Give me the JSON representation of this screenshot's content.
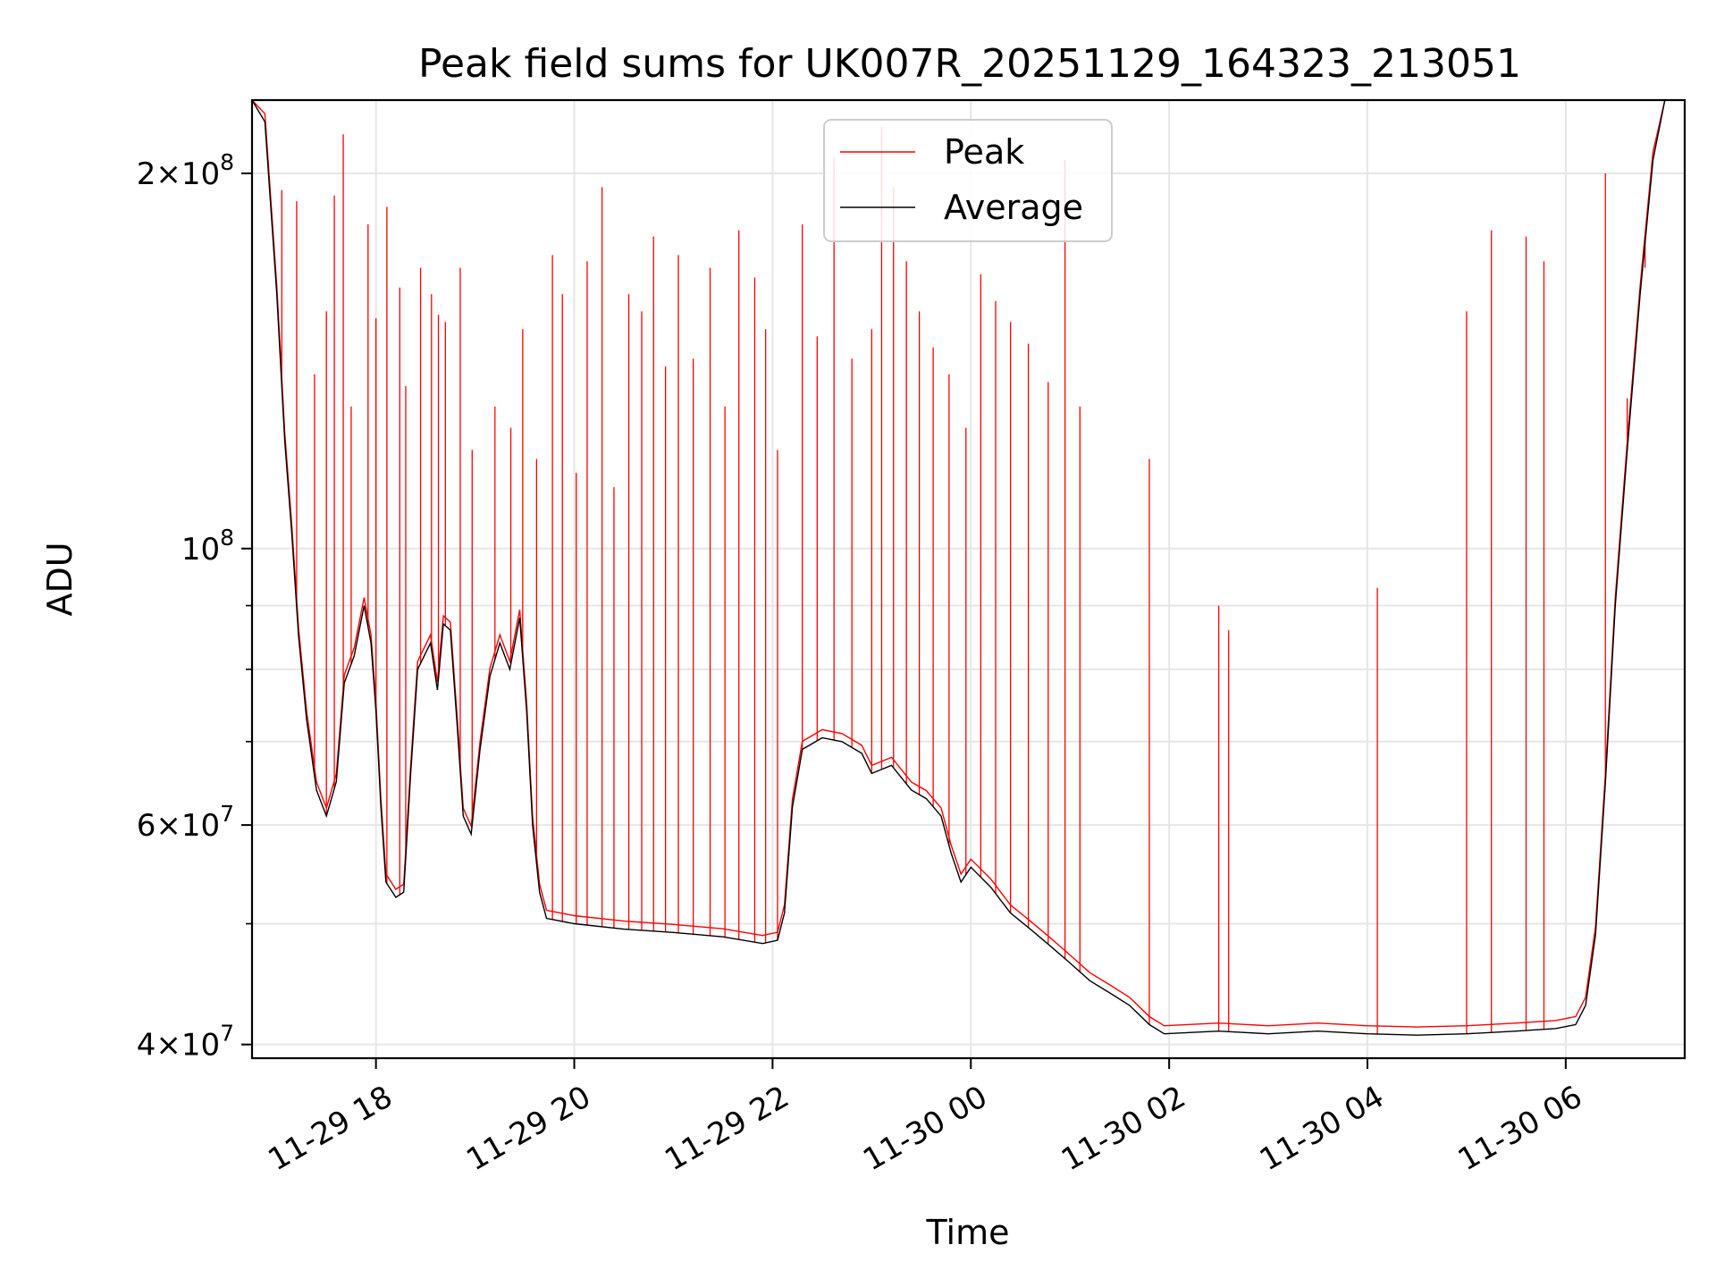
{
  "chart_data": {
    "type": "line",
    "title": "Peak field sums for UK007R_20251129_164323_213051",
    "xlabel": "Time",
    "ylabel": "ADU",
    "yscale": "log",
    "xlim_hours": [
      16.75,
      7.2
    ],
    "xlim_hours_note": "hours relative to 2025-11-29 00:00; 7.2 means 2025-11-30 07:12",
    "ylim": [
      39000000,
      229000000
    ],
    "grid": true,
    "legend_position": "upper center",
    "x_ticks": [
      {
        "hour": 18,
        "label": "11-29 18"
      },
      {
        "hour": 20,
        "label": "11-29 20"
      },
      {
        "hour": 22,
        "label": "11-29 22"
      },
      {
        "hour": 24,
        "label": "11-30 00"
      },
      {
        "hour": 26,
        "label": "11-30 02"
      },
      {
        "hour": 28,
        "label": "11-30 04"
      },
      {
        "hour": 30,
        "label": "11-30 06"
      }
    ],
    "y_major_ticks": [
      {
        "value": 40000000,
        "mantissa": "4",
        "exponent": "7"
      },
      {
        "value": 60000000,
        "mantissa": "6",
        "exponent": "7"
      },
      {
        "value": 100000000,
        "mantissa": "",
        "exponent": "8"
      },
      {
        "value": 200000000,
        "mantissa": "2",
        "exponent": "8"
      }
    ],
    "y_minor_ticks": [
      50000000,
      70000000,
      80000000,
      90000000
    ],
    "series": [
      {
        "name": "Peak",
        "color": "#ff0000",
        "note": "Average baseline plus sharp spikes (meteor peaks)",
        "spikes": [
          [
            17.05,
            194000000.0
          ],
          [
            17.2,
            190000000.0
          ],
          [
            17.38,
            138000000.0
          ],
          [
            17.5,
            155000000.0
          ],
          [
            17.58,
            192000000.0
          ],
          [
            17.67,
            215000000.0
          ],
          [
            17.75,
            130000000.0
          ],
          [
            17.92,
            182000000.0
          ],
          [
            18.0,
            153000000.0
          ],
          [
            18.11,
            188000000.0
          ],
          [
            18.24,
            162000000.0
          ],
          [
            18.3,
            135000000.0
          ],
          [
            18.45,
            168000000.0
          ],
          [
            18.56,
            160000000.0
          ],
          [
            18.63,
            154000000.0
          ],
          [
            18.7,
            152000000.0
          ],
          [
            18.85,
            168000000.0
          ],
          [
            18.97,
            120000000.0
          ],
          [
            19.2,
            130000000.0
          ],
          [
            19.36,
            125000000.0
          ],
          [
            19.48,
            150000000.0
          ],
          [
            19.62,
            118000000.0
          ],
          [
            19.78,
            172000000.0
          ],
          [
            19.88,
            160000000.0
          ],
          [
            20.02,
            115000000.0
          ],
          [
            20.13,
            170000000.0
          ],
          [
            20.28,
            195000000.0
          ],
          [
            20.4,
            112000000.0
          ],
          [
            20.55,
            160000000.0
          ],
          [
            20.68,
            155000000.0
          ],
          [
            20.8,
            178000000.0
          ],
          [
            20.92,
            140000000.0
          ],
          [
            21.05,
            172000000.0
          ],
          [
            21.2,
            142000000.0
          ],
          [
            21.37,
            168000000.0
          ],
          [
            21.52,
            130000000.0
          ],
          [
            21.66,
            180000000.0
          ],
          [
            21.82,
            165000000.0
          ],
          [
            21.93,
            150000000.0
          ],
          [
            22.05,
            120000000.0
          ],
          [
            22.3,
            182000000.0
          ],
          [
            22.45,
            148000000.0
          ],
          [
            22.62,
            206000000.0
          ],
          [
            22.8,
            142000000.0
          ],
          [
            23.0,
            150000000.0
          ],
          [
            23.1,
            218000000.0
          ],
          [
            23.22,
            195000000.0
          ],
          [
            23.35,
            170000000.0
          ],
          [
            23.48,
            155000000.0
          ],
          [
            23.62,
            145000000.0
          ],
          [
            23.78,
            138000000.0
          ],
          [
            23.95,
            125000000.0
          ],
          [
            24.1,
            166000000.0
          ],
          [
            24.25,
            158000000.0
          ],
          [
            24.4,
            152000000.0
          ],
          [
            24.58,
            146000000.0
          ],
          [
            24.78,
            136000000.0
          ],
          [
            24.95,
            205000000.0
          ],
          [
            25.1,
            130000000.0
          ],
          [
            25.8,
            118000000.0
          ],
          [
            26.5,
            90000000.0
          ],
          [
            26.6,
            86000000.0
          ],
          [
            28.1,
            93000000.0
          ],
          [
            29.0,
            155000000.0
          ],
          [
            29.25,
            180000000.0
          ],
          [
            29.6,
            178000000.0
          ],
          [
            29.78,
            170000000.0
          ],
          [
            30.4,
            200000000.0
          ],
          [
            30.62,
            132000000.0
          ],
          [
            30.8,
            168000000.0
          ]
        ]
      },
      {
        "name": "Average",
        "color": "#000000",
        "points": [
          [
            16.75,
            230000000.0
          ],
          [
            16.88,
            220000000.0
          ],
          [
            17.0,
            160000000.0
          ],
          [
            17.08,
            122000000.0
          ],
          [
            17.15,
            103000000.0
          ],
          [
            17.22,
            85000000.0
          ],
          [
            17.3,
            73000000.0
          ],
          [
            17.4,
            64000000.0
          ],
          [
            17.5,
            61000000.0
          ],
          [
            17.6,
            65000000.0
          ],
          [
            17.68,
            78000000.0
          ],
          [
            17.78,
            82000000.0
          ],
          [
            17.88,
            90000000.0
          ],
          [
            17.95,
            84000000.0
          ],
          [
            18.0,
            74000000.0
          ],
          [
            18.05,
            62000000.0
          ],
          [
            18.1,
            54000000.0
          ],
          [
            18.2,
            52500000.0
          ],
          [
            18.28,
            53000000.0
          ],
          [
            18.35,
            66000000.0
          ],
          [
            18.42,
            80000000.0
          ],
          [
            18.55,
            84000000.0
          ],
          [
            18.62,
            77000000.0
          ],
          [
            18.68,
            87000000.0
          ],
          [
            18.75,
            86000000.0
          ],
          [
            18.82,
            72000000.0
          ],
          [
            18.88,
            61000000.0
          ],
          [
            18.96,
            59000000.0
          ],
          [
            19.05,
            69000000.0
          ],
          [
            19.15,
            79000000.0
          ],
          [
            19.25,
            84000000.0
          ],
          [
            19.35,
            80000000.0
          ],
          [
            19.45,
            88000000.0
          ],
          [
            19.52,
            74000000.0
          ],
          [
            19.58,
            60000000.0
          ],
          [
            19.65,
            53000000.0
          ],
          [
            19.72,
            50500000.0
          ],
          [
            20.0,
            50000000.0
          ],
          [
            20.5,
            49500000.0
          ],
          [
            21.0,
            49200000.0
          ],
          [
            21.5,
            48800000.0
          ],
          [
            21.9,
            48200000.0
          ],
          [
            22.05,
            48500000.0
          ],
          [
            22.12,
            51000000.0
          ],
          [
            22.2,
            62000000.0
          ],
          [
            22.3,
            69000000.0
          ],
          [
            22.5,
            70500000.0
          ],
          [
            22.7,
            70000000.0
          ],
          [
            22.9,
            68500000.0
          ],
          [
            23.0,
            66000000.0
          ],
          [
            23.2,
            67000000.0
          ],
          [
            23.4,
            64000000.0
          ],
          [
            23.55,
            63000000.0
          ],
          [
            23.7,
            61000000.0
          ],
          [
            23.8,
            57000000.0
          ],
          [
            23.9,
            54000000.0
          ],
          [
            24.0,
            55500000.0
          ],
          [
            24.2,
            53500000.0
          ],
          [
            24.4,
            51000000.0
          ],
          [
            24.6,
            49500000.0
          ],
          [
            24.8,
            48000000.0
          ],
          [
            25.0,
            46500000.0
          ],
          [
            25.2,
            45000000.0
          ],
          [
            25.4,
            44000000.0
          ],
          [
            25.6,
            43000000.0
          ],
          [
            25.8,
            41500000.0
          ],
          [
            25.95,
            40800000.0
          ],
          [
            26.5,
            41000000.0
          ],
          [
            27.0,
            40800000.0
          ],
          [
            27.5,
            41000000.0
          ],
          [
            28.0,
            40800000.0
          ],
          [
            28.5,
            40700000.0
          ],
          [
            29.0,
            40800000.0
          ],
          [
            29.5,
            41000000.0
          ],
          [
            29.9,
            41200000.0
          ],
          [
            30.1,
            41500000.0
          ],
          [
            30.2,
            43000000.0
          ],
          [
            30.3,
            49000000.0
          ],
          [
            30.4,
            65000000.0
          ],
          [
            30.5,
            90000000.0
          ],
          [
            30.62,
            120000000.0
          ],
          [
            30.75,
            160000000.0
          ],
          [
            30.88,
            205000000.0
          ],
          [
            31.0,
            230000000.0
          ],
          [
            31.2,
            230000000.0
          ]
        ]
      }
    ]
  }
}
